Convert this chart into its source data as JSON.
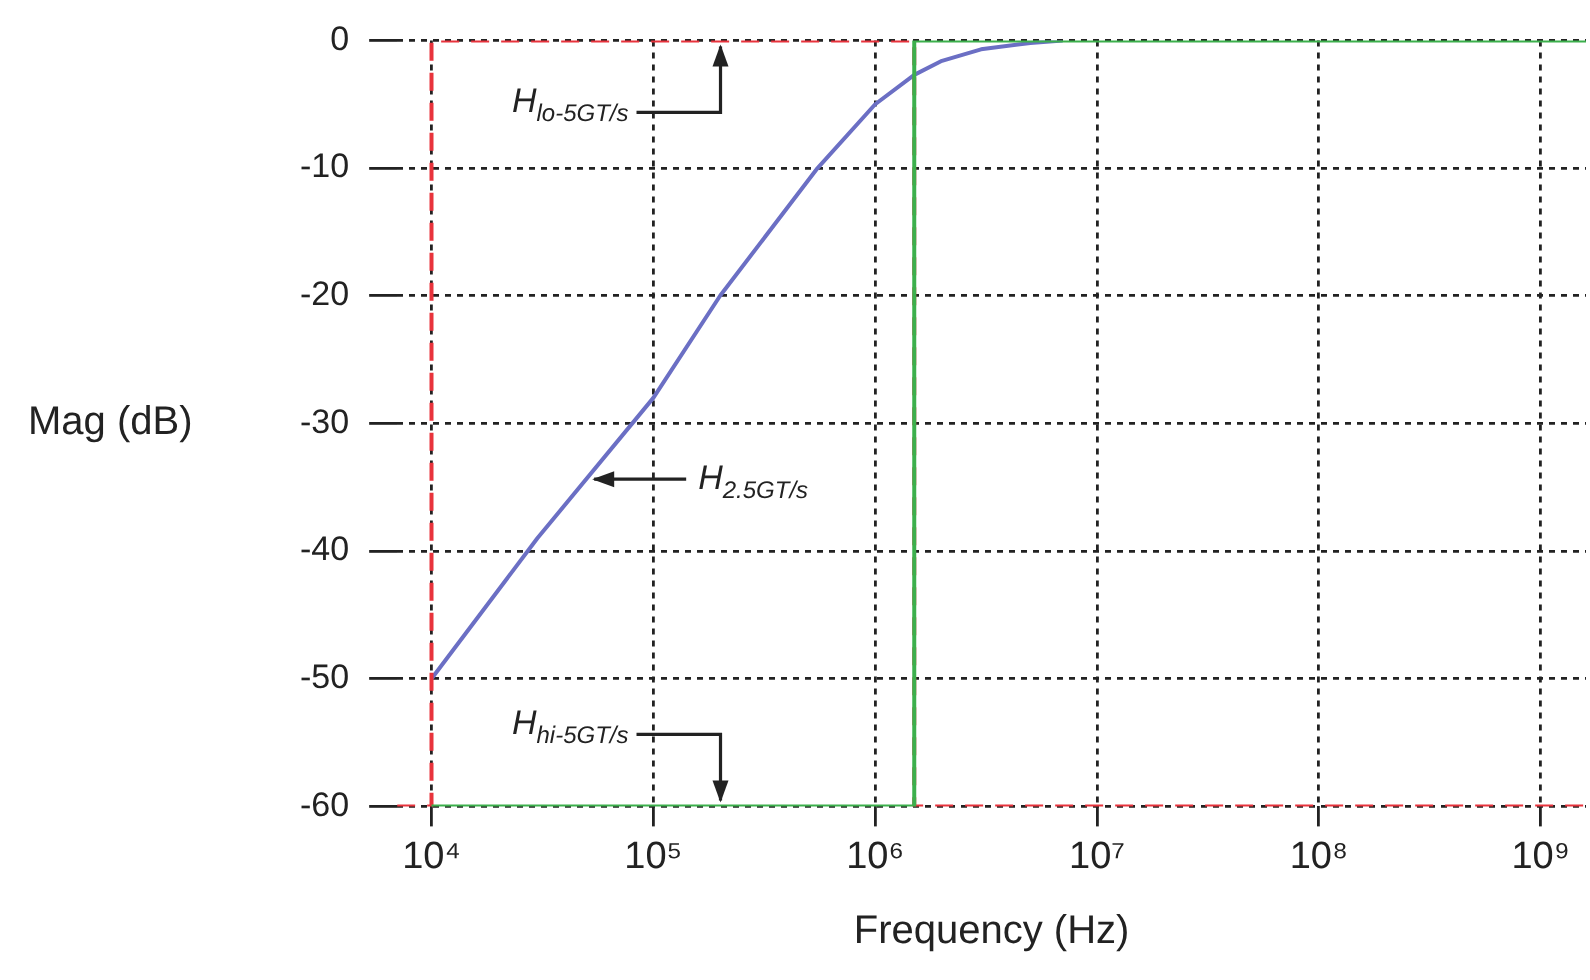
{
  "chart_data": {
    "type": "line",
    "xlabel": "Frequency (Hz)",
    "ylabel": "Mag (dB)",
    "log": "x",
    "xlim": [
      7000,
      1600000000
    ],
    "xticks": [
      {
        "value": 10000,
        "label": "10⁴"
      },
      {
        "value": 100000,
        "label": "10⁵"
      },
      {
        "value": 1000000,
        "label": "10⁶"
      },
      {
        "value": 10000000,
        "label": "10⁷"
      },
      {
        "value": 100000000,
        "label": "10⁸"
      },
      {
        "value": 1000000000,
        "label": "10⁹"
      }
    ],
    "ylim": [
      -60,
      0
    ],
    "yticks": [
      -60,
      -50,
      -40,
      -30,
      -20,
      -10,
      0
    ],
    "grid": true,
    "legend": false,
    "marker": "none",
    "series": [
      {
        "name": "H$_{hi-5GT/s}$",
        "color": "#3cb04c",
        "line_style": "solid",
        "x": [
          10000,
          1500000,
          1500000,
          1600000000
        ],
        "values": [
          -60,
          -60,
          0,
          0
        ]
      },
      {
        "name": "H$_{lo-5GT/s}$",
        "color": "#e8333c",
        "line_style": "dashed",
        "x": [
          7000,
          10000,
          10000,
          1500000,
          1500000,
          1600000000
        ],
        "values": [
          -60,
          -60,
          0,
          0,
          -60,
          -60
        ]
      },
      {
        "name": "H$_{2.5GT/s}$",
        "color": "#6b6fc4",
        "line_style": "solid",
        "x": [
          10000,
          30000,
          100000,
          200000,
          550000,
          1000000,
          1500000,
          2000000,
          3000000,
          5000000,
          7000000
        ],
        "values": [
          -50,
          -39,
          -28,
          -20,
          -10,
          -5,
          -2.7,
          -1.6,
          -0.7,
          -0.2,
          0
        ]
      }
    ]
  }
}
